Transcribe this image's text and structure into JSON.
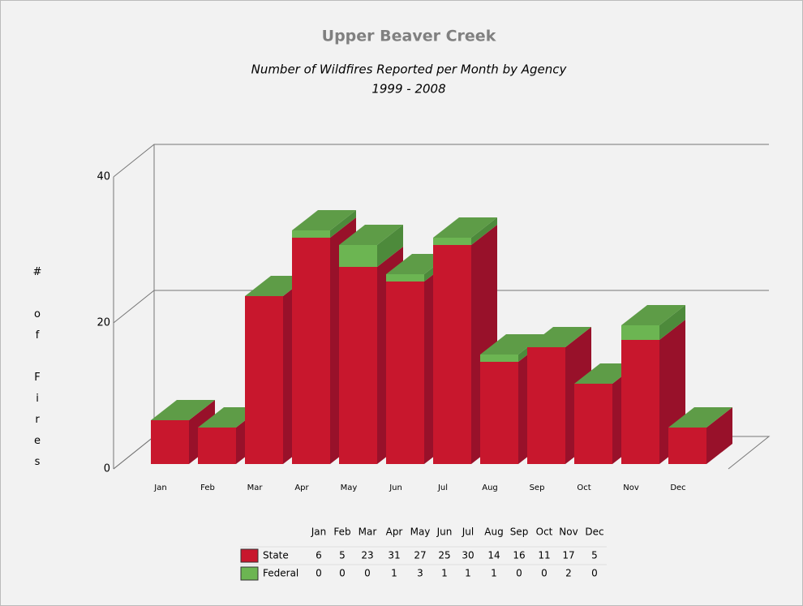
{
  "chart_data": {
    "type": "bar3d_stacked",
    "title": "Upper Beaver Creek",
    "subtitle": [
      "Number of Wildfires  Reported per Month by Agency",
      "1999 - 2008"
    ],
    "y_label": "# of Fires",
    "categories": [
      "Jan",
      "Feb",
      "Mar",
      "Apr",
      "May",
      "Jun",
      "Jul",
      "Aug",
      "Sep",
      "Oct",
      "Nov",
      "Dec"
    ],
    "series": [
      {
        "name": "State",
        "color": "#c8172d",
        "values": [
          6,
          5,
          23,
          31,
          27,
          25,
          30,
          14,
          16,
          11,
          17,
          5
        ]
      },
      {
        "name": "Federal",
        "color": "#6cb552",
        "values": [
          0,
          0,
          0,
          1,
          3,
          1,
          1,
          1,
          0,
          0,
          2,
          0
        ]
      }
    ],
    "ylim": [
      0,
      40
    ],
    "yticks": [
      0,
      20,
      40
    ],
    "grid": true
  }
}
